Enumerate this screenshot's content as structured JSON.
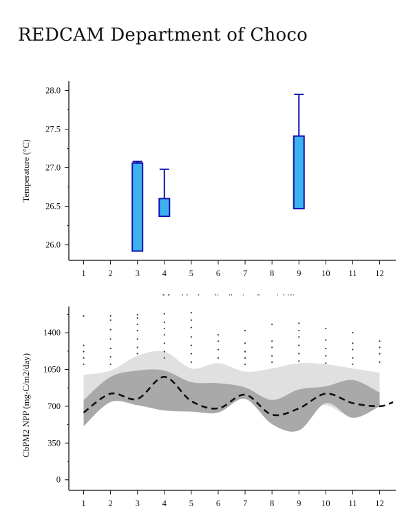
{
  "page": {
    "title": "REDCAM Department of Choco"
  },
  "colors": {
    "box_fill": "#3db2ef",
    "box_stroke": "#1010b0",
    "band_light": "#e0e0e0",
    "band_dark": "#a9a9a9",
    "median_line": "#111111",
    "dots": "#333333"
  },
  "chart_data": [
    {
      "type": "box",
      "title": "",
      "ylabel": "Temperature (°C)",
      "xlabel": "Monthly data distribution & variability",
      "x_ticks": [
        1,
        2,
        3,
        4,
        5,
        6,
        7,
        8,
        9,
        10,
        11,
        12
      ],
      "y_ticks": [
        "26.0",
        "26.5",
        "27.0",
        "27.5",
        "28.0"
      ],
      "y_tick_values": [
        26.0,
        26.5,
        27.0,
        27.5,
        28.0
      ],
      "xlim": [
        0.45,
        12.6
      ],
      "ylim": [
        25.8,
        28.12
      ],
      "boxes": [
        {
          "month": 3,
          "low": 25.92,
          "high": 27.06,
          "whisker_top": 27.08
        },
        {
          "month": 4,
          "low": 26.37,
          "high": 26.6,
          "whisker_top": 26.98
        },
        {
          "month": 9,
          "low": 26.47,
          "high": 27.41,
          "whisker_top": 27.95
        }
      ]
    },
    {
      "type": "area",
      "ylabel": "CbPM2 NPP (mg-C/m2/day)",
      "xlabel": "",
      "x_ticks": [
        1,
        2,
        3,
        4,
        5,
        6,
        7,
        8,
        9,
        10,
        11,
        12
      ],
      "y_ticks": [
        "0",
        "350",
        "700",
        "1050",
        "1400"
      ],
      "y_tick_values": [
        0,
        350,
        700,
        1050,
        1400
      ],
      "xlim": [
        0.45,
        12.6
      ],
      "ylim": [
        -100,
        1650
      ],
      "outer_band": {
        "x": [
          1,
          2,
          3,
          4,
          5,
          6,
          7,
          8,
          9,
          10,
          11,
          12
        ],
        "upper": [
          1000,
          1040,
          1180,
          1220,
          1060,
          1110,
          1030,
          1060,
          1110,
          1100,
          1060,
          1020
        ],
        "lower": [
          580,
          760,
          720,
          690,
          670,
          660,
          780,
          700,
          690,
          710,
          600,
          700
        ]
      },
      "inner_band": {
        "x": [
          1,
          2,
          3,
          4,
          5,
          6,
          7,
          8,
          9,
          10,
          11,
          12
        ],
        "upper": [
          760,
          980,
          1040,
          1040,
          930,
          920,
          880,
          760,
          860,
          890,
          950,
          830
        ],
        "lower": [
          510,
          740,
          710,
          660,
          650,
          640,
          770,
          530,
          470,
          730,
          590,
          700
        ]
      },
      "median": {
        "x": [
          1,
          2,
          3,
          4,
          5,
          6,
          7,
          8,
          9,
          10,
          11,
          12,
          12.5
        ],
        "y": [
          640,
          820,
          770,
          980,
          750,
          680,
          810,
          620,
          680,
          820,
          730,
          700,
          740
        ]
      },
      "outliers": [
        {
          "x": 1,
          "y": [
            1100,
            1160,
            1220,
            1280,
            1560
          ]
        },
        {
          "x": 2,
          "y": [
            1100,
            1170,
            1250,
            1340,
            1430,
            1520,
            1560
          ]
        },
        {
          "x": 3,
          "y": [
            1200,
            1260,
            1340,
            1420,
            1480,
            1540,
            1570
          ]
        },
        {
          "x": 4,
          "y": [
            1160,
            1220,
            1300,
            1380,
            1440,
            1500,
            1580
          ]
        },
        {
          "x": 5,
          "y": [
            1120,
            1200,
            1280,
            1360,
            1450,
            1520,
            1590
          ]
        },
        {
          "x": 6,
          "y": [
            1160,
            1240,
            1320,
            1380
          ]
        },
        {
          "x": 7,
          "y": [
            1100,
            1160,
            1220,
            1300,
            1420
          ]
        },
        {
          "x": 8,
          "y": [
            1120,
            1180,
            1260,
            1320,
            1480
          ]
        },
        {
          "x": 9,
          "y": [
            1130,
            1200,
            1280,
            1360,
            1420,
            1490
          ]
        },
        {
          "x": 10,
          "y": [
            1110,
            1180,
            1250,
            1330,
            1440
          ]
        },
        {
          "x": 11,
          "y": [
            1100,
            1160,
            1240,
            1300,
            1400
          ]
        },
        {
          "x": 12,
          "y": [
            1120,
            1200,
            1260,
            1320
          ]
        }
      ]
    }
  ]
}
